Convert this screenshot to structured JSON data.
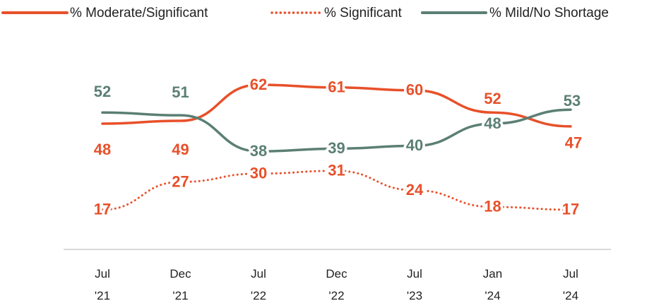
{
  "chart_data": {
    "type": "line",
    "categories": [
      "Jul '21",
      "Dec '21",
      "Jul '22",
      "Dec '22",
      "Jul '23",
      "Jan '24",
      "Jul '24"
    ],
    "series": [
      {
        "name": "% Moderate/Significant",
        "color": "#e8502a",
        "values": [
          48,
          49,
          62,
          61,
          60,
          52,
          47
        ]
      },
      {
        "name": "% Significant",
        "color": "#e8502a",
        "dashed": true,
        "values": [
          17,
          27,
          30,
          31,
          24,
          18,
          17
        ]
      },
      {
        "name": "% Mild/No Shortage",
        "color": "#5b7f75",
        "values": [
          52,
          51,
          38,
          39,
          40,
          48,
          53
        ]
      }
    ],
    "ylim": [
      0,
      70
    ],
    "legend": "top"
  }
}
